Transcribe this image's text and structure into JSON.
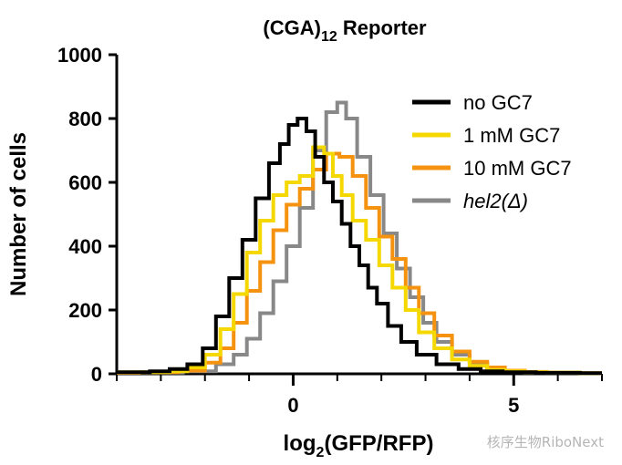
{
  "chart_data": {
    "type": "line",
    "title_main": "(CGA)",
    "title_sub": "12",
    "title_rest": " Reporter",
    "ylabel": "Number of cells",
    "xlabel_main": "log",
    "xlabel_sub": "2",
    "xlabel_rest": "(GFP/RFP)",
    "xlim": [
      -4,
      7
    ],
    "ylim": [
      0,
      1000
    ],
    "x_minor_ticks": [
      -4,
      -3,
      -2,
      -1,
      0,
      1,
      2,
      3,
      4,
      5,
      6,
      7
    ],
    "x_tick_labels": [
      {
        "value": 0,
        "label": "0"
      },
      {
        "value": 5,
        "label": "5"
      }
    ],
    "y_ticks": [
      0,
      200,
      400,
      600,
      800,
      1000
    ],
    "y_tick_labels": [
      "0",
      "200",
      "400",
      "600",
      "800",
      "1000"
    ],
    "legend_position": "top-right",
    "series": [
      {
        "name": "no GC7",
        "color": "#000000",
        "italic": false,
        "x": [
          -4,
          -3.5,
          -3,
          -2.6,
          -2.2,
          -1.9,
          -1.6,
          -1.3,
          -1.0,
          -0.7,
          -0.4,
          -0.2,
          0,
          0.2,
          0.4,
          0.6,
          0.8,
          1.0,
          1.2,
          1.4,
          1.6,
          1.8,
          2.0,
          2.3,
          2.6,
          3.0,
          3.5,
          4.0,
          4.5,
          5.0,
          6.0,
          7.0
        ],
        "y": [
          5,
          5,
          8,
          15,
          30,
          80,
          180,
          300,
          420,
          550,
          660,
          720,
          780,
          800,
          760,
          680,
          600,
          540,
          470,
          400,
          340,
          270,
          220,
          150,
          100,
          60,
          30,
          15,
          8,
          5,
          3,
          2
        ]
      },
      {
        "name": "1 mM GC7",
        "color": "#f5d800",
        "italic": false,
        "x": [
          -4,
          -3,
          -2.6,
          -2.2,
          -1.8,
          -1.5,
          -1.2,
          -0.9,
          -0.6,
          -0.3,
          0,
          0.3,
          0.6,
          0.8,
          1.0,
          1.2,
          1.5,
          1.8,
          2.1,
          2.4,
          2.7,
          3.0,
          3.4,
          3.8,
          4.2,
          4.6,
          5.0,
          5.5,
          6.0,
          7.0
        ],
        "y": [
          5,
          5,
          8,
          20,
          60,
          140,
          250,
          380,
          480,
          560,
          600,
          620,
          710,
          690,
          620,
          560,
          480,
          420,
          340,
          270,
          200,
          130,
          80,
          45,
          25,
          12,
          8,
          5,
          4,
          2
        ]
      },
      {
        "name": "10 mM GC7",
        "color": "#f5920f",
        "italic": false,
        "x": [
          -4,
          -3,
          -2.2,
          -1.8,
          -1.5,
          -1.2,
          -0.9,
          -0.6,
          -0.3,
          0,
          0.3,
          0.6,
          0.9,
          1.2,
          1.5,
          1.8,
          2.1,
          2.4,
          2.7,
          3.0,
          3.4,
          3.8,
          4.2,
          4.6,
          5.0,
          5.5,
          6.0,
          7.0
        ],
        "y": [
          3,
          5,
          10,
          35,
          80,
          160,
          260,
          350,
          450,
          530,
          580,
          640,
          690,
          680,
          620,
          520,
          430,
          360,
          270,
          190,
          120,
          70,
          38,
          20,
          10,
          6,
          4,
          2
        ]
      },
      {
        "name": "hel2(Δ)",
        "color": "#888888",
        "italic": true,
        "x": [
          -4,
          -3,
          -2,
          -1.5,
          -1.2,
          -0.9,
          -0.6,
          -0.3,
          0,
          0.3,
          0.6,
          0.9,
          1.1,
          1.3,
          1.6,
          1.9,
          2.2,
          2.5,
          2.8,
          3.1,
          3.4,
          3.8,
          4.2,
          4.6,
          5.0,
          5.5,
          6.0,
          7.0
        ],
        "y": [
          3,
          4,
          8,
          30,
          60,
          110,
          190,
          290,
          400,
          520,
          700,
          820,
          850,
          800,
          680,
          560,
          440,
          330,
          240,
          160,
          100,
          60,
          30,
          15,
          8,
          5,
          3,
          2
        ]
      }
    ]
  },
  "watermark": {
    "text": "核序生物RiboNext"
  }
}
